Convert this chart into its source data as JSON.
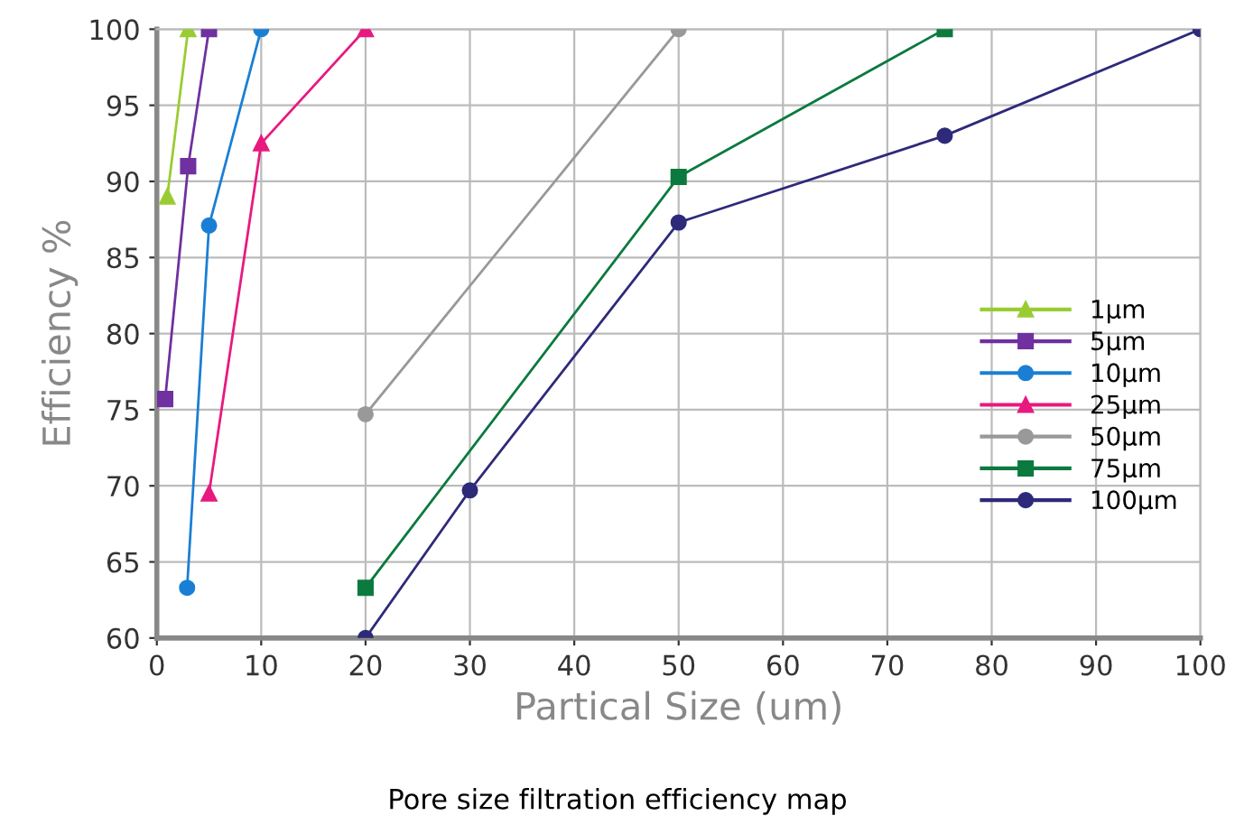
{
  "chart_data": {
    "type": "line",
    "title": "Pore size filtration efficiency map",
    "xlabel": "Partical Size (um)",
    "ylabel": "Efficiency %",
    "xlim": [
      0,
      100
    ],
    "xticks": [
      0,
      10,
      20,
      30,
      40,
      50,
      60,
      70,
      80,
      90,
      100
    ],
    "ylim": [
      60,
      100
    ],
    "yticks": [
      60,
      65,
      70,
      75,
      80,
      85,
      90,
      95,
      100
    ],
    "grid": true,
    "legend": "right",
    "series": [
      {
        "name": "1μm",
        "color": "#99cc33",
        "marker": "triangle",
        "x": [
          1,
          3
        ],
        "values": [
          89,
          100
        ]
      },
      {
        "name": "5μm",
        "color": "#7030a0",
        "marker": "square",
        "x": [
          0.8,
          3,
          5
        ],
        "values": [
          75.7,
          91,
          100
        ]
      },
      {
        "name": "10μm",
        "color": "#1a7fd4",
        "marker": "circle",
        "x": [
          2.9,
          5,
          10
        ],
        "values": [
          63.3,
          87.1,
          100
        ]
      },
      {
        "name": "25μm",
        "color": "#e8197f",
        "marker": "triangle",
        "x": [
          5,
          10,
          20
        ],
        "values": [
          69.5,
          92.5,
          100
        ]
      },
      {
        "name": "50μm",
        "color": "#999999",
        "marker": "circle",
        "x": [
          20,
          50
        ],
        "values": [
          74.7,
          100
        ]
      },
      {
        "name": "75μm",
        "color": "#0b7a3e",
        "marker": "square",
        "x": [
          20,
          50,
          75.5
        ],
        "values": [
          63.3,
          90.3,
          100
        ]
      },
      {
        "name": "100μm",
        "color": "#2e2a7a",
        "marker": "circle",
        "x": [
          20,
          30,
          50,
          75.5,
          100
        ],
        "values": [
          60,
          69.7,
          87.3,
          93,
          100
        ]
      }
    ]
  }
}
